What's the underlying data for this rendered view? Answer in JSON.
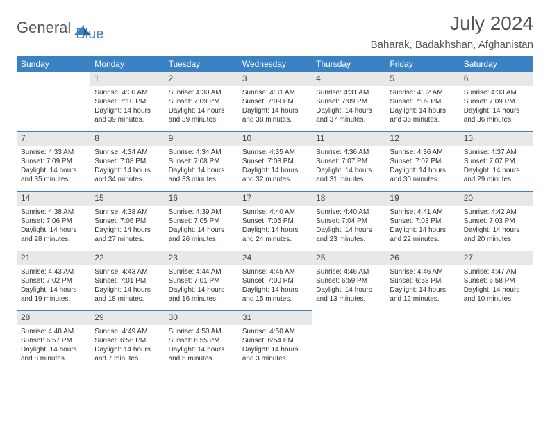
{
  "brand": {
    "part1": "General",
    "part2": "Blue"
  },
  "title": "July 2024",
  "location": "Baharak, Badakhshan, Afghanistan",
  "colors": {
    "header_bg": "#3b82c4",
    "header_text": "#ffffff",
    "daynum_bg": "#e8e8e8",
    "text": "#333333",
    "brand_gray": "#555555",
    "brand_blue": "#3b82c4",
    "row_divider": "#3b82c4"
  },
  "weekdays": [
    "Sunday",
    "Monday",
    "Tuesday",
    "Wednesday",
    "Thursday",
    "Friday",
    "Saturday"
  ],
  "grid": [
    [
      {
        "empty": true
      },
      {
        "n": "1",
        "sr": "4:30 AM",
        "ss": "7:10 PM",
        "dl": "14 hours and 39 minutes."
      },
      {
        "n": "2",
        "sr": "4:30 AM",
        "ss": "7:09 PM",
        "dl": "14 hours and 39 minutes."
      },
      {
        "n": "3",
        "sr": "4:31 AM",
        "ss": "7:09 PM",
        "dl": "14 hours and 38 minutes."
      },
      {
        "n": "4",
        "sr": "4:31 AM",
        "ss": "7:09 PM",
        "dl": "14 hours and 37 minutes."
      },
      {
        "n": "5",
        "sr": "4:32 AM",
        "ss": "7:09 PM",
        "dl": "14 hours and 36 minutes."
      },
      {
        "n": "6",
        "sr": "4:33 AM",
        "ss": "7:09 PM",
        "dl": "14 hours and 36 minutes."
      }
    ],
    [
      {
        "n": "7",
        "sr": "4:33 AM",
        "ss": "7:09 PM",
        "dl": "14 hours and 35 minutes."
      },
      {
        "n": "8",
        "sr": "4:34 AM",
        "ss": "7:08 PM",
        "dl": "14 hours and 34 minutes."
      },
      {
        "n": "9",
        "sr": "4:34 AM",
        "ss": "7:08 PM",
        "dl": "14 hours and 33 minutes."
      },
      {
        "n": "10",
        "sr": "4:35 AM",
        "ss": "7:08 PM",
        "dl": "14 hours and 32 minutes."
      },
      {
        "n": "11",
        "sr": "4:36 AM",
        "ss": "7:07 PM",
        "dl": "14 hours and 31 minutes."
      },
      {
        "n": "12",
        "sr": "4:36 AM",
        "ss": "7:07 PM",
        "dl": "14 hours and 30 minutes."
      },
      {
        "n": "13",
        "sr": "4:37 AM",
        "ss": "7:07 PM",
        "dl": "14 hours and 29 minutes."
      }
    ],
    [
      {
        "n": "14",
        "sr": "4:38 AM",
        "ss": "7:06 PM",
        "dl": "14 hours and 28 minutes."
      },
      {
        "n": "15",
        "sr": "4:38 AM",
        "ss": "7:06 PM",
        "dl": "14 hours and 27 minutes."
      },
      {
        "n": "16",
        "sr": "4:39 AM",
        "ss": "7:05 PM",
        "dl": "14 hours and 26 minutes."
      },
      {
        "n": "17",
        "sr": "4:40 AM",
        "ss": "7:05 PM",
        "dl": "14 hours and 24 minutes."
      },
      {
        "n": "18",
        "sr": "4:40 AM",
        "ss": "7:04 PM",
        "dl": "14 hours and 23 minutes."
      },
      {
        "n": "19",
        "sr": "4:41 AM",
        "ss": "7:03 PM",
        "dl": "14 hours and 22 minutes."
      },
      {
        "n": "20",
        "sr": "4:42 AM",
        "ss": "7:03 PM",
        "dl": "14 hours and 20 minutes."
      }
    ],
    [
      {
        "n": "21",
        "sr": "4:43 AM",
        "ss": "7:02 PM",
        "dl": "14 hours and 19 minutes."
      },
      {
        "n": "22",
        "sr": "4:43 AM",
        "ss": "7:01 PM",
        "dl": "14 hours and 18 minutes."
      },
      {
        "n": "23",
        "sr": "4:44 AM",
        "ss": "7:01 PM",
        "dl": "14 hours and 16 minutes."
      },
      {
        "n": "24",
        "sr": "4:45 AM",
        "ss": "7:00 PM",
        "dl": "14 hours and 15 minutes."
      },
      {
        "n": "25",
        "sr": "4:46 AM",
        "ss": "6:59 PM",
        "dl": "14 hours and 13 minutes."
      },
      {
        "n": "26",
        "sr": "4:46 AM",
        "ss": "6:58 PM",
        "dl": "14 hours and 12 minutes."
      },
      {
        "n": "27",
        "sr": "4:47 AM",
        "ss": "6:58 PM",
        "dl": "14 hours and 10 minutes."
      }
    ],
    [
      {
        "n": "28",
        "sr": "4:48 AM",
        "ss": "6:57 PM",
        "dl": "14 hours and 8 minutes."
      },
      {
        "n": "29",
        "sr": "4:49 AM",
        "ss": "6:56 PM",
        "dl": "14 hours and 7 minutes."
      },
      {
        "n": "30",
        "sr": "4:50 AM",
        "ss": "6:55 PM",
        "dl": "14 hours and 5 minutes."
      },
      {
        "n": "31",
        "sr": "4:50 AM",
        "ss": "6:54 PM",
        "dl": "14 hours and 3 minutes."
      },
      {
        "empty": true
      },
      {
        "empty": true
      },
      {
        "empty": true
      }
    ]
  ],
  "labels": {
    "sunrise": "Sunrise:",
    "sunset": "Sunset:",
    "daylight": "Daylight:"
  }
}
